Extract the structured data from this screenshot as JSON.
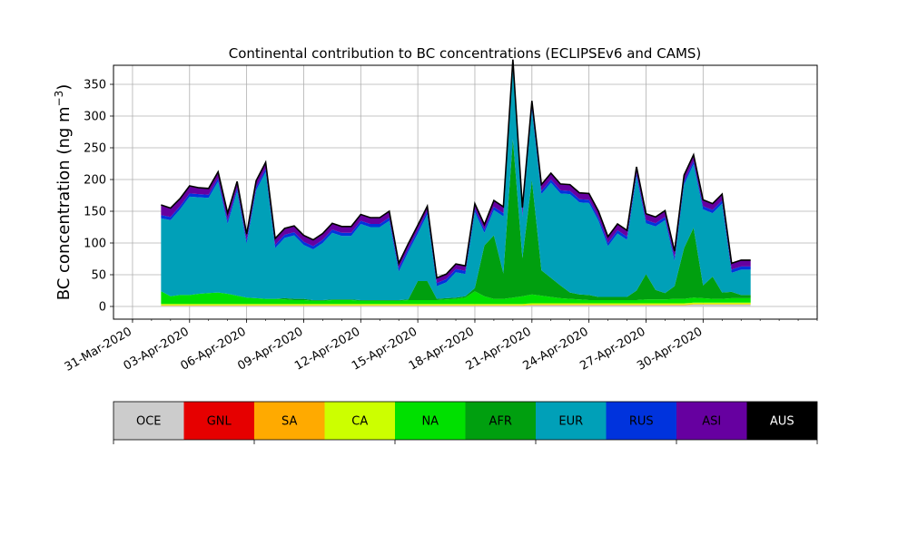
{
  "chart_data": {
    "type": "area",
    "stacked": true,
    "title": "Continental contribution to BC concentrations (ECLIPSEv6 and CAMS)",
    "xlabel": "",
    "ylabel": "BC concentration (ng m",
    "ylabel_sup": "−3",
    "ylabel_close": ")",
    "xlim": [
      "2020-03-30",
      "2020-05-06"
    ],
    "ylim": [
      -20,
      380
    ],
    "yticks": [
      0,
      50,
      100,
      150,
      200,
      250,
      300,
      350
    ],
    "xticks": [
      {
        "date": "2020-03-31",
        "label": "31-Mar-2020"
      },
      {
        "date": "2020-04-03",
        "label": "03-Apr-2020"
      },
      {
        "date": "2020-04-06",
        "label": "06-Apr-2020"
      },
      {
        "date": "2020-04-09",
        "label": "09-Apr-2020"
      },
      {
        "date": "2020-04-12",
        "label": "12-Apr-2020"
      },
      {
        "date": "2020-04-15",
        "label": "15-Apr-2020"
      },
      {
        "date": "2020-04-18",
        "label": "18-Apr-2020"
      },
      {
        "date": "2020-04-21",
        "label": "21-Apr-2020"
      },
      {
        "date": "2020-04-24",
        "label": "24-Apr-2020"
      },
      {
        "date": "2020-04-27",
        "label": "27-Apr-2020"
      },
      {
        "date": "2020-04-30",
        "label": "30-Apr-2020"
      }
    ],
    "grid": true,
    "legend_position": "bottom (color bar)",
    "x": [
      "2020-04-01 12:00",
      "2020-04-02 00:00",
      "2020-04-02 12:00",
      "2020-04-03 00:00",
      "2020-04-03 12:00",
      "2020-04-04 00:00",
      "2020-04-04 12:00",
      "2020-04-05 00:00",
      "2020-04-05 12:00",
      "2020-04-06 00:00",
      "2020-04-06 12:00",
      "2020-04-07 00:00",
      "2020-04-07 12:00",
      "2020-04-08 00:00",
      "2020-04-08 12:00",
      "2020-04-09 00:00",
      "2020-04-09 12:00",
      "2020-04-10 00:00",
      "2020-04-10 12:00",
      "2020-04-11 00:00",
      "2020-04-11 12:00",
      "2020-04-12 00:00",
      "2020-04-12 12:00",
      "2020-04-13 00:00",
      "2020-04-13 12:00",
      "2020-04-14 00:00",
      "2020-04-14 12:00",
      "2020-04-15 00:00",
      "2020-04-15 12:00",
      "2020-04-16 00:00",
      "2020-04-16 12:00",
      "2020-04-17 00:00",
      "2020-04-17 12:00",
      "2020-04-18 00:00",
      "2020-04-18 12:00",
      "2020-04-19 00:00",
      "2020-04-19 12:00",
      "2020-04-20 00:00",
      "2020-04-20 12:00",
      "2020-04-21 00:00",
      "2020-04-21 12:00",
      "2020-04-22 00:00",
      "2020-04-22 12:00",
      "2020-04-23 00:00",
      "2020-04-23 12:00",
      "2020-04-24 00:00",
      "2020-04-24 12:00",
      "2020-04-25 00:00",
      "2020-04-25 12:00",
      "2020-04-26 00:00",
      "2020-04-26 12:00",
      "2020-04-27 00:00",
      "2020-04-27 12:00",
      "2020-04-28 00:00",
      "2020-04-28 12:00",
      "2020-04-29 00:00",
      "2020-04-29 12:00",
      "2020-04-30 00:00",
      "2020-04-30 12:00",
      "2020-05-01 00:00",
      "2020-05-01 12:00",
      "2020-05-02 00:00",
      "2020-05-02 12:00"
    ],
    "series": [
      {
        "name": "OCE",
        "color": "#cccccc",
        "values": [
          1,
          1,
          1,
          1,
          1,
          1,
          1,
          1,
          1,
          1,
          1,
          1,
          1,
          1,
          1,
          1,
          1,
          1,
          1,
          1,
          1,
          1,
          1,
          1,
          1,
          1,
          1,
          1,
          1,
          1,
          1,
          1,
          1,
          1,
          1,
          1,
          1,
          1,
          1,
          2,
          2,
          2,
          2,
          2,
          2,
          2,
          2,
          2,
          2,
          2,
          2,
          2,
          2,
          2,
          2,
          2,
          3,
          3,
          3,
          3,
          3,
          3,
          3
        ]
      },
      {
        "name": "GNL",
        "color": "#e60000",
        "values": [
          0,
          0,
          0,
          0,
          0,
          0,
          0,
          0,
          0,
          0,
          0,
          0,
          0,
          0,
          0,
          0,
          0,
          0,
          0,
          0,
          0,
          0,
          0,
          0,
          0,
          0,
          0,
          0,
          0,
          0,
          0,
          0,
          0,
          0,
          0,
          0,
          0,
          0,
          0,
          0,
          0,
          0,
          0,
          0,
          0,
          0,
          0,
          0,
          0,
          0,
          0,
          0,
          0,
          0,
          0,
          0,
          0,
          0,
          0,
          0,
          0,
          0,
          0
        ]
      },
      {
        "name": "SA",
        "color": "#ffaa00",
        "values": [
          1,
          1,
          1,
          1,
          1,
          1,
          1,
          1,
          1,
          1,
          1,
          1,
          1,
          1,
          1,
          1,
          1,
          1,
          1,
          1,
          1,
          1,
          1,
          1,
          1,
          1,
          1,
          1,
          1,
          1,
          1,
          1,
          1,
          1,
          1,
          1,
          1,
          1,
          1,
          1,
          1,
          1,
          1,
          1,
          1,
          1,
          1,
          1,
          1,
          1,
          1,
          1,
          1,
          1,
          1,
          1,
          1,
          1,
          1,
          1,
          1,
          1,
          1
        ]
      },
      {
        "name": "CA",
        "color": "#ccff00",
        "values": [
          2,
          2,
          2,
          2,
          2,
          2,
          2,
          2,
          2,
          2,
          2,
          2,
          2,
          2,
          2,
          2,
          2,
          2,
          2,
          2,
          2,
          2,
          2,
          2,
          2,
          2,
          2,
          2,
          2,
          2,
          2,
          2,
          2,
          2,
          2,
          2,
          2,
          2,
          2,
          2,
          2,
          2,
          2,
          2,
          2,
          2,
          2,
          2,
          2,
          2,
          2,
          2,
          2,
          2,
          2,
          2,
          2,
          2,
          2,
          2,
          2,
          2,
          2
        ]
      },
      {
        "name": "NA",
        "color": "#00e000",
        "values": [
          20,
          12,
          14,
          14,
          16,
          17,
          18,
          16,
          13,
          10,
          9,
          8,
          8,
          7,
          6,
          6,
          5,
          5,
          6,
          6,
          6,
          5,
          5,
          5,
          5,
          5,
          6,
          6,
          6,
          6,
          7,
          8,
          10,
          20,
          12,
          8,
          8,
          10,
          12,
          14,
          12,
          10,
          8,
          7,
          6,
          5,
          5,
          5,
          5,
          5,
          5,
          6,
          6,
          6,
          7,
          7,
          8,
          7,
          6,
          6,
          7,
          7,
          7
        ]
      },
      {
        "name": "AFR",
        "color": "#009f0f",
        "values": [
          0,
          0,
          0,
          0,
          0,
          0,
          0,
          0,
          0,
          0,
          0,
          0,
          0,
          2,
          2,
          2,
          1,
          1,
          1,
          1,
          1,
          1,
          1,
          1,
          1,
          1,
          1,
          30,
          30,
          2,
          2,
          2,
          2,
          5,
          80,
          100,
          40,
          250,
          60,
          180,
          40,
          30,
          20,
          10,
          8,
          8,
          5,
          5,
          5,
          5,
          15,
          40,
          15,
          10,
          20,
          80,
          110,
          20,
          35,
          10,
          10,
          5,
          5
        ]
      },
      {
        "name": "EUR",
        "color": "#00a0b8",
        "values": [
          115,
          120,
          135,
          155,
          152,
          150,
          175,
          110,
          165,
          85,
          170,
          200,
          80,
          95,
          100,
          85,
          80,
          90,
          105,
          100,
          100,
          120,
          115,
          115,
          125,
          45,
          75,
          75,
          105,
          20,
          25,
          40,
          35,
          120,
          20,
          40,
          90,
          110,
          65,
          110,
          120,
          150,
          145,
          155,
          145,
          145,
          120,
          80,
          100,
          90,
          180,
          80,
          100,
          115,
          40,
          100,
          100,
          120,
          100,
          140,
          30,
          40,
          40
        ]
      },
      {
        "name": "RUS",
        "color": "#0033dd",
        "values": [
          5,
          5,
          5,
          5,
          5,
          5,
          5,
          5,
          5,
          5,
          5,
          5,
          5,
          5,
          5,
          5,
          5,
          5,
          5,
          5,
          5,
          5,
          5,
          5,
          5,
          5,
          5,
          5,
          5,
          5,
          5,
          5,
          5,
          5,
          5,
          5,
          5,
          5,
          5,
          5,
          5,
          5,
          5,
          5,
          5,
          5,
          5,
          5,
          5,
          5,
          5,
          5,
          5,
          5,
          5,
          5,
          5,
          5,
          5,
          5,
          5,
          5,
          5
        ]
      },
      {
        "name": "ASI",
        "color": "#6600a0",
        "values": [
          16,
          14,
          12,
          12,
          10,
          10,
          10,
          12,
          10,
          10,
          10,
          10,
          10,
          10,
          10,
          10,
          10,
          10,
          10,
          10,
          10,
          10,
          10,
          10,
          10,
          8,
          8,
          8,
          8,
          8,
          8,
          8,
          8,
          8,
          8,
          10,
          10,
          10,
          10,
          10,
          10,
          10,
          10,
          10,
          10,
          10,
          10,
          10,
          10,
          10,
          10,
          10,
          10,
          10,
          10,
          10,
          10,
          10,
          10,
          10,
          10,
          10,
          10
        ]
      },
      {
        "name": "AUS",
        "color": "#000000",
        "values": [
          0,
          0,
          0,
          0,
          0,
          0,
          0,
          0,
          0,
          0,
          0,
          0,
          0,
          0,
          0,
          0,
          0,
          0,
          0,
          0,
          0,
          0,
          0,
          0,
          0,
          0,
          0,
          0,
          0,
          0,
          0,
          0,
          0,
          0,
          0,
          0,
          0,
          0,
          0,
          0,
          0,
          0,
          0,
          0,
          0,
          0,
          0,
          0,
          0,
          0,
          0,
          0,
          0,
          0,
          0,
          0,
          0,
          0,
          0,
          0,
          0,
          0,
          0
        ]
      }
    ]
  }
}
